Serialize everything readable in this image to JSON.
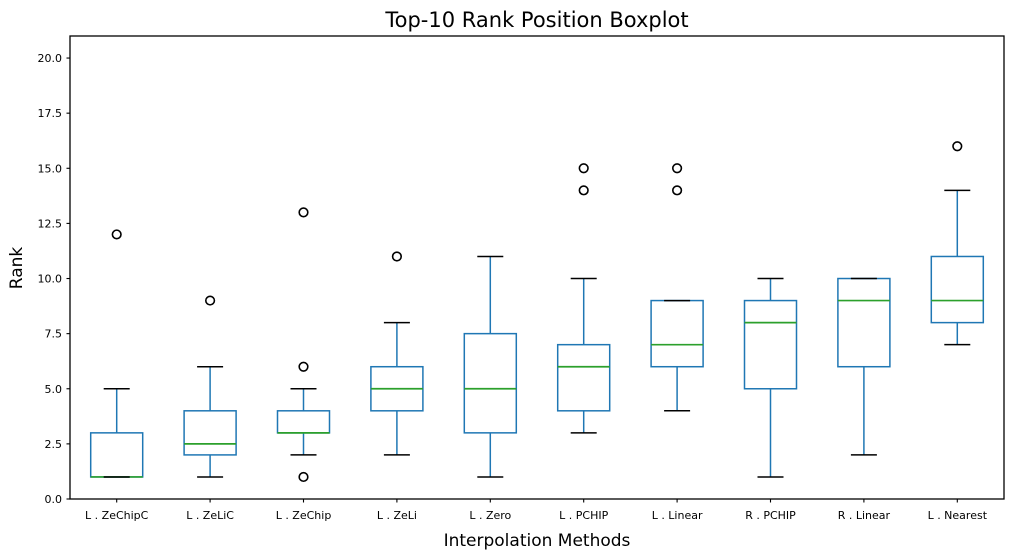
{
  "chart_data": {
    "type": "boxplot",
    "title": "Top-10 Rank Position Boxplot",
    "xlabel": "Interpolation Methods",
    "ylabel": "Rank",
    "ylim": [
      0,
      21
    ],
    "yticks": [
      0.0,
      2.5,
      5.0,
      7.5,
      10.0,
      12.5,
      15.0,
      17.5,
      20.0
    ],
    "ytick_labels": [
      "0.0",
      "2.5",
      "5.0",
      "7.5",
      "10.0",
      "12.5",
      "15.0",
      "17.5",
      "20.0"
    ],
    "categories": [
      "L . ZeChipC",
      "L . ZeLiC",
      "L . ZeChip",
      "L . ZeLi",
      "L . Zero",
      "L . PCHIP",
      "L . Linear",
      "R . PCHIP",
      "R . Linear",
      "L . Nearest"
    ],
    "series": [
      {
        "label": "L . ZeChipC",
        "slug": "l-zechipc",
        "whislo": 1,
        "q1": 1,
        "med": 1,
        "q3": 3,
        "whishi": 5,
        "fliers": [
          12
        ]
      },
      {
        "label": "L . ZeLiC",
        "slug": "l-zelic",
        "whislo": 1,
        "q1": 2,
        "med": 2.5,
        "q3": 4,
        "whishi": 6,
        "fliers": [
          9
        ]
      },
      {
        "label": "L . ZeChip",
        "slug": "l-zechip",
        "whislo": 2,
        "q1": 3,
        "med": 3,
        "q3": 4,
        "whishi": 5,
        "fliers": [
          1,
          6,
          13
        ]
      },
      {
        "label": "L . ZeLi",
        "slug": "l-zeli",
        "whislo": 2,
        "q1": 4,
        "med": 5,
        "q3": 6,
        "whishi": 8,
        "fliers": [
          11
        ]
      },
      {
        "label": "L . Zero",
        "slug": "l-zero",
        "whislo": 1,
        "q1": 3,
        "med": 5,
        "q3": 7.5,
        "whishi": 11,
        "fliers": []
      },
      {
        "label": "L . PCHIP",
        "slug": "l-pchip",
        "whislo": 3,
        "q1": 4,
        "med": 6,
        "q3": 7,
        "whishi": 10,
        "fliers": [
          14,
          15
        ]
      },
      {
        "label": "L . Linear",
        "slug": "l-linear",
        "whislo": 4,
        "q1": 6,
        "med": 7,
        "q3": 9,
        "whishi": 9,
        "fliers": [
          14,
          15
        ]
      },
      {
        "label": "R . PCHIP",
        "slug": "r-pchip",
        "whislo": 1,
        "q1": 5,
        "med": 8,
        "q3": 9,
        "whishi": 10,
        "fliers": []
      },
      {
        "label": "R . Linear",
        "slug": "r-linear",
        "whislo": 2,
        "q1": 6,
        "med": 9,
        "q3": 10,
        "whishi": 10,
        "fliers": []
      },
      {
        "label": "L . Nearest",
        "slug": "l-nearest",
        "whislo": 7,
        "q1": 8,
        "med": 9,
        "q3": 11,
        "whishi": 14,
        "fliers": [
          16
        ]
      }
    ],
    "colors": {
      "box": "#1f77b4",
      "whisker": "#1f77b4",
      "median": "#2ca02c",
      "cap": "#000000",
      "flier": "#000000",
      "spine": "#000000",
      "background": "#ffffff"
    },
    "grid": false,
    "legend": null
  }
}
